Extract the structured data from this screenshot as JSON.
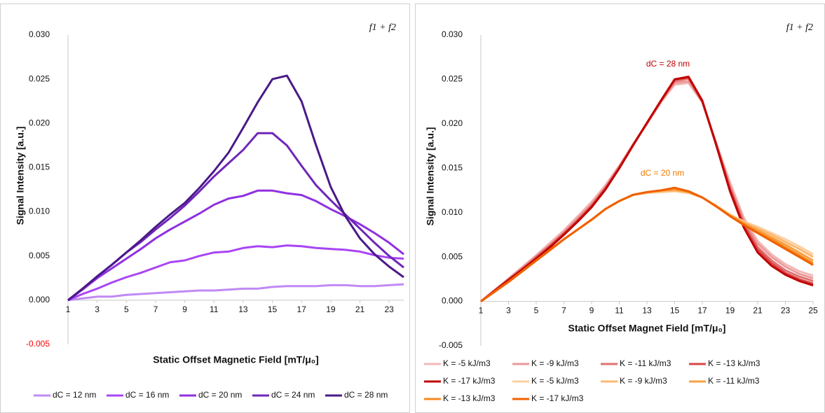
{
  "chart_data": [
    {
      "type": "line",
      "ylabel": "Signal Intensity [a.u.]",
      "xlabel": "Static Offset Magnetic Field [mT/μ₀]",
      "annotations": [
        {
          "text": "f1 + f2",
          "color": "#111111"
        }
      ],
      "x": [
        1,
        2,
        3,
        4,
        5,
        6,
        7,
        8,
        9,
        10,
        11,
        12,
        13,
        14,
        15,
        16,
        17,
        18,
        19,
        20,
        21,
        22,
        23,
        24
      ],
      "xlim": [
        1,
        24
      ],
      "xticks": [
        1,
        3,
        5,
        7,
        9,
        11,
        13,
        15,
        17,
        19,
        21,
        23
      ],
      "ylim": [
        -0.005,
        0.03
      ],
      "yticks": [
        -0.005,
        {
          "value": 0,
          "label": "0.000"
        },
        0.005,
        {
          "value": 0.01,
          "label": "0.010"
        },
        0.015,
        {
          "value": 0.02,
          "label": "0.020"
        },
        0.025,
        {
          "value": 0.03,
          "label": "0.030"
        }
      ],
      "negative_tick_color": "#ff0000",
      "grid": false,
      "series": [
        {
          "name": "dC = 12 nm",
          "color": "#c08af5",
          "values": [
            0,
            0.0002,
            0.0004,
            0.0004,
            0.0006,
            0.0007,
            0.0008,
            0.0009,
            0.001,
            0.0011,
            0.0011,
            0.0012,
            0.0013,
            0.0013,
            0.0015,
            0.0016,
            0.0016,
            0.0016,
            0.0017,
            0.0017,
            0.0016,
            0.0016,
            0.0017,
            0.0018
          ]
        },
        {
          "name": "dC = 16 nm",
          "color": "#a845f5",
          "values": [
            0,
            0.0007,
            0.0013,
            0.002,
            0.0026,
            0.0031,
            0.0037,
            0.0043,
            0.0045,
            0.005,
            0.0054,
            0.0055,
            0.0059,
            0.0061,
            0.006,
            0.0062,
            0.0061,
            0.0059,
            0.0058,
            0.0057,
            0.0055,
            0.0051,
            0.0048,
            0.0047
          ]
        },
        {
          "name": "dC = 20 nm",
          "color": "#9030e0",
          "values": [
            0,
            0.0012,
            0.0025,
            0.0036,
            0.0047,
            0.0058,
            0.007,
            0.008,
            0.0089,
            0.0098,
            0.0108,
            0.0115,
            0.0118,
            0.0124,
            0.0124,
            0.0121,
            0.0119,
            0.0112,
            0.0103,
            0.0095,
            0.0086,
            0.0076,
            0.0065,
            0.0052
          ]
        },
        {
          "name": "dC = 24 nm",
          "color": "#7026b8",
          "values": [
            0,
            0.0013,
            0.0027,
            0.004,
            0.0054,
            0.0066,
            0.008,
            0.0093,
            0.0107,
            0.0123,
            0.014,
            0.0155,
            0.017,
            0.0189,
            0.0189,
            0.0175,
            0.0152,
            0.013,
            0.0113,
            0.0097,
            0.0081,
            0.0065,
            0.005,
            0.0037
          ]
        },
        {
          "name": "dC = 28 nm",
          "color": "#4a1a88",
          "values": [
            0,
            0.0013,
            0.0027,
            0.004,
            0.0054,
            0.0068,
            0.0083,
            0.0097,
            0.011,
            0.0127,
            0.0146,
            0.0167,
            0.0195,
            0.0224,
            0.025,
            0.0254,
            0.0225,
            0.0175,
            0.0128,
            0.0095,
            0.007,
            0.0052,
            0.0038,
            0.0026
          ]
        }
      ]
    },
    {
      "type": "line",
      "ylabel": "Signal Intensity [a.u.]",
      "xlabel": "Static Offset Magnet Field [mT/μ₀]",
      "annotations": [
        {
          "text": "f1 + f2",
          "color": "#111111"
        },
        {
          "text": "dC = 28 nm",
          "color": "#c00000"
        },
        {
          "text": "dC = 20 nm",
          "color": "#f07800"
        }
      ],
      "x": [
        1,
        2,
        3,
        4,
        5,
        6,
        7,
        8,
        9,
        10,
        11,
        12,
        13,
        14,
        15,
        16,
        17,
        18,
        19,
        20,
        21,
        22,
        23,
        24,
        25
      ],
      "xlim": [
        1,
        25
      ],
      "xticks": [
        1,
        3,
        5,
        7,
        9,
        11,
        13,
        15,
        17,
        19,
        21,
        23,
        25
      ],
      "ylim": [
        -0.005,
        0.03
      ],
      "yticks": [
        -0.005,
        {
          "value": 0,
          "label": "0.000"
        },
        0.005,
        {
          "value": 0.01,
          "label": "0.010"
        },
        0.015,
        {
          "value": 0.02,
          "label": "0.020"
        },
        0.025,
        {
          "value": 0.03,
          "label": "0.030"
        }
      ],
      "grid": false,
      "series": [
        {
          "name": "K = -5 kJ/m3",
          "color": "#f2b8b8",
          "values": [
            0,
            0.0013,
            0.0026,
            0.0039,
            0.0052,
            0.0066,
            0.008,
            0.0096,
            0.0112,
            0.0131,
            0.0153,
            0.0177,
            0.02,
            0.0224,
            0.0244,
            0.0246,
            0.0224,
            0.0178,
            0.0134,
            0.0094,
            0.0068,
            0.0053,
            0.0042,
            0.0034,
            0.0029
          ]
        },
        {
          "name": "K = -9 kJ/m3",
          "color": "#eb9a9a",
          "values": [
            0,
            0.0013,
            0.0025,
            0.0038,
            0.0051,
            0.0064,
            0.0078,
            0.0094,
            0.011,
            0.0129,
            0.0152,
            0.0177,
            0.02,
            0.0225,
            0.0246,
            0.0248,
            0.0225,
            0.0178,
            0.0131,
            0.0091,
            0.0065,
            0.005,
            0.0039,
            0.0031,
            0.0026
          ]
        },
        {
          "name": "K = -11 kJ/m3",
          "color": "#e07070",
          "values": [
            0,
            0.0012,
            0.0025,
            0.0037,
            0.005,
            0.0063,
            0.0077,
            0.0092,
            0.0108,
            0.0128,
            0.0151,
            0.0176,
            0.0201,
            0.0225,
            0.0248,
            0.0251,
            0.0225,
            0.0177,
            0.0128,
            0.0088,
            0.0061,
            0.0046,
            0.0035,
            0.0028,
            0.0023
          ]
        },
        {
          "name": "K = -13 kJ/m3",
          "color": "#d94545",
          "values": [
            0,
            0.0012,
            0.0024,
            0.0036,
            0.0049,
            0.0062,
            0.0076,
            0.0091,
            0.0107,
            0.0127,
            0.015,
            0.0176,
            0.0201,
            0.0226,
            0.025,
            0.0252,
            0.0225,
            0.0177,
            0.0126,
            0.0085,
            0.0058,
            0.0043,
            0.0032,
            0.0025,
            0.002
          ]
        },
        {
          "name": "K = -17 kJ/m3",
          "color": "#c00000",
          "values": [
            0,
            0.0012,
            0.0024,
            0.0036,
            0.0048,
            0.0061,
            0.0075,
            0.009,
            0.0106,
            0.0126,
            0.015,
            0.0176,
            0.0201,
            0.0226,
            0.025,
            0.0253,
            0.0226,
            0.0176,
            0.0124,
            0.0083,
            0.0055,
            0.004,
            0.003,
            0.0023,
            0.0018
          ]
        },
        {
          "name": "K = -5 kJ/m3",
          "color": "#fdd0a0",
          "values": [
            0,
            0.0011,
            0.0022,
            0.0034,
            0.0046,
            0.0058,
            0.007,
            0.0081,
            0.0092,
            0.0104,
            0.0113,
            0.012,
            0.0122,
            0.0123,
            0.0124,
            0.0122,
            0.0117,
            0.0108,
            0.0098,
            0.009,
            0.0084,
            0.0077,
            0.007,
            0.0062,
            0.0053
          ]
        },
        {
          "name": "K = -9 kJ/m3",
          "color": "#fcb870",
          "values": [
            0,
            0.0011,
            0.0022,
            0.0034,
            0.0046,
            0.0058,
            0.007,
            0.0081,
            0.0092,
            0.0104,
            0.0113,
            0.012,
            0.0123,
            0.0124,
            0.0125,
            0.0123,
            0.0117,
            0.0107,
            0.0097,
            0.0089,
            0.0082,
            0.0075,
            0.0067,
            0.0059,
            0.005
          ]
        },
        {
          "name": "K = -11 kJ/m3",
          "color": "#f9a040",
          "values": [
            0,
            0.0011,
            0.0022,
            0.0034,
            0.0046,
            0.0058,
            0.007,
            0.0081,
            0.0092,
            0.0104,
            0.0113,
            0.012,
            0.0123,
            0.0125,
            0.0126,
            0.0123,
            0.0117,
            0.0107,
            0.0097,
            0.0088,
            0.008,
            0.0072,
            0.0064,
            0.0055,
            0.0046
          ]
        },
        {
          "name": "K = -13 kJ/m3",
          "color": "#f78a20",
          "values": [
            0,
            0.0011,
            0.0022,
            0.0034,
            0.0046,
            0.0058,
            0.007,
            0.0081,
            0.0092,
            0.0104,
            0.0113,
            0.012,
            0.0123,
            0.0125,
            0.0127,
            0.0124,
            0.0117,
            0.0107,
            0.0096,
            0.0087,
            0.0078,
            0.007,
            0.0061,
            0.0052,
            0.0043
          ]
        },
        {
          "name": "K = -17 kJ/m3",
          "color": "#f06000",
          "values": [
            0,
            0.0011,
            0.0022,
            0.0034,
            0.0046,
            0.0058,
            0.007,
            0.0081,
            0.0092,
            0.0104,
            0.0113,
            0.012,
            0.0123,
            0.0125,
            0.0128,
            0.0124,
            0.0117,
            0.0107,
            0.0096,
            0.0086,
            0.0077,
            0.0068,
            0.0059,
            0.005,
            0.0041
          ]
        }
      ]
    }
  ]
}
